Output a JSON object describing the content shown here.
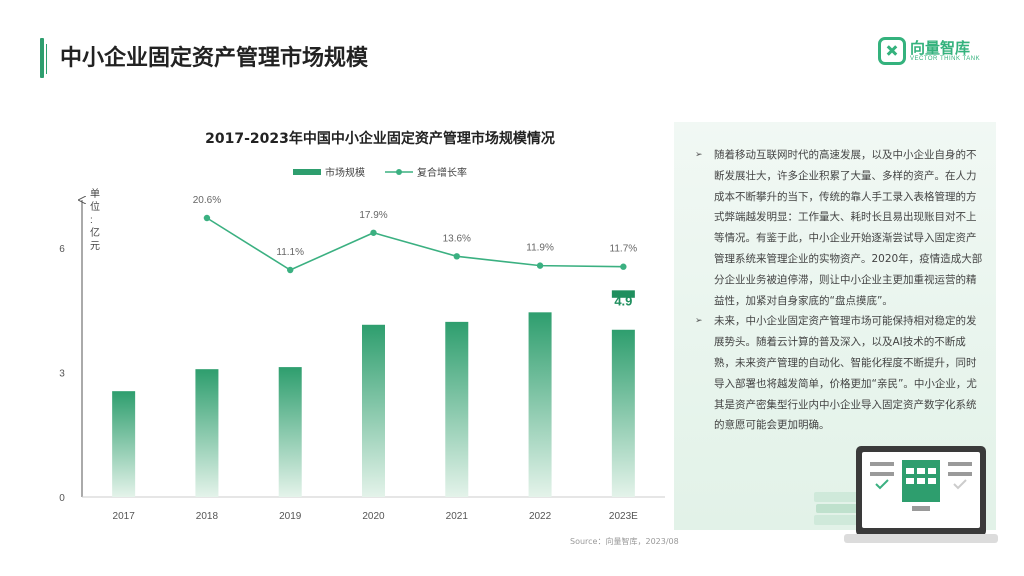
{
  "page": {
    "title": "中小企业固定资产管理市场规模"
  },
  "logo": {
    "cn": "向量智库",
    "en": "VECTOR THINK TANK"
  },
  "chart_data": {
    "type": "bar",
    "title": "2017-2023年中国中小企业固定资产管理市场规模情况",
    "categories": [
      "2017",
      "2018",
      "2019",
      "2020",
      "2021",
      "2022",
      "2023E"
    ],
    "series": [
      {
        "name": "市场规模",
        "type": "bar",
        "values": [
          2.55,
          3.08,
          3.13,
          4.15,
          4.22,
          4.45,
          4.9
        ]
      },
      {
        "name": "复合增长率",
        "type": "line",
        "values": [
          null,
          20.6,
          11.1,
          17.9,
          13.6,
          11.9,
          11.7
        ],
        "labels": [
          "",
          "20.6%",
          "11.1%",
          "17.9%",
          "13.6%",
          "11.9%",
          "11.7%"
        ]
      }
    ],
    "ylabel": "单位：亿元",
    "yticks": [
      "0",
      "3",
      "6"
    ],
    "ylim": [
      0,
      6
    ],
    "highlight_label": "4.9",
    "colors": {
      "bar_top": "#2e9e6e",
      "bar_bottom": "#dff1e7",
      "line": "#3bb081",
      "highlight": "#1f8f5e"
    },
    "legend_position": "top-center"
  },
  "panel": {
    "paragraphs": [
      "随着移动互联网时代的高速发展，以及中小企业自身的不断发展壮大，许多企业积累了大量、多样的资产。在人力成本不断攀升的当下，传统的靠人手工录入表格管理的方式弊端越发明显：工作量大、耗时长且易出现账目对不上等情况。有鉴于此，中小企业开始逐渐尝试导入固定资产管理系统来管理企业的实物资产。2020年，疫情造成大部分企业业务被迫停滞，则让中小企业主更加重视运营的精益性，加紧对自身家底的“盘点摸底”。",
      "未来，中小企业固定资产管理市场可能保持相对稳定的发展势头。随着云计算的普及深入，以及AI技术的不断成熟，未来资产管理的自动化、智能化程度不断提升，同时导入部署也将越发简单，价格更加“亲民”。中小企业，尤其是资产密集型行业内中小企业导入固定资产数字化系统的意愿可能会更加明确。"
    ],
    "bullet": "➢"
  },
  "source": "Source：向量智库，2023/08"
}
